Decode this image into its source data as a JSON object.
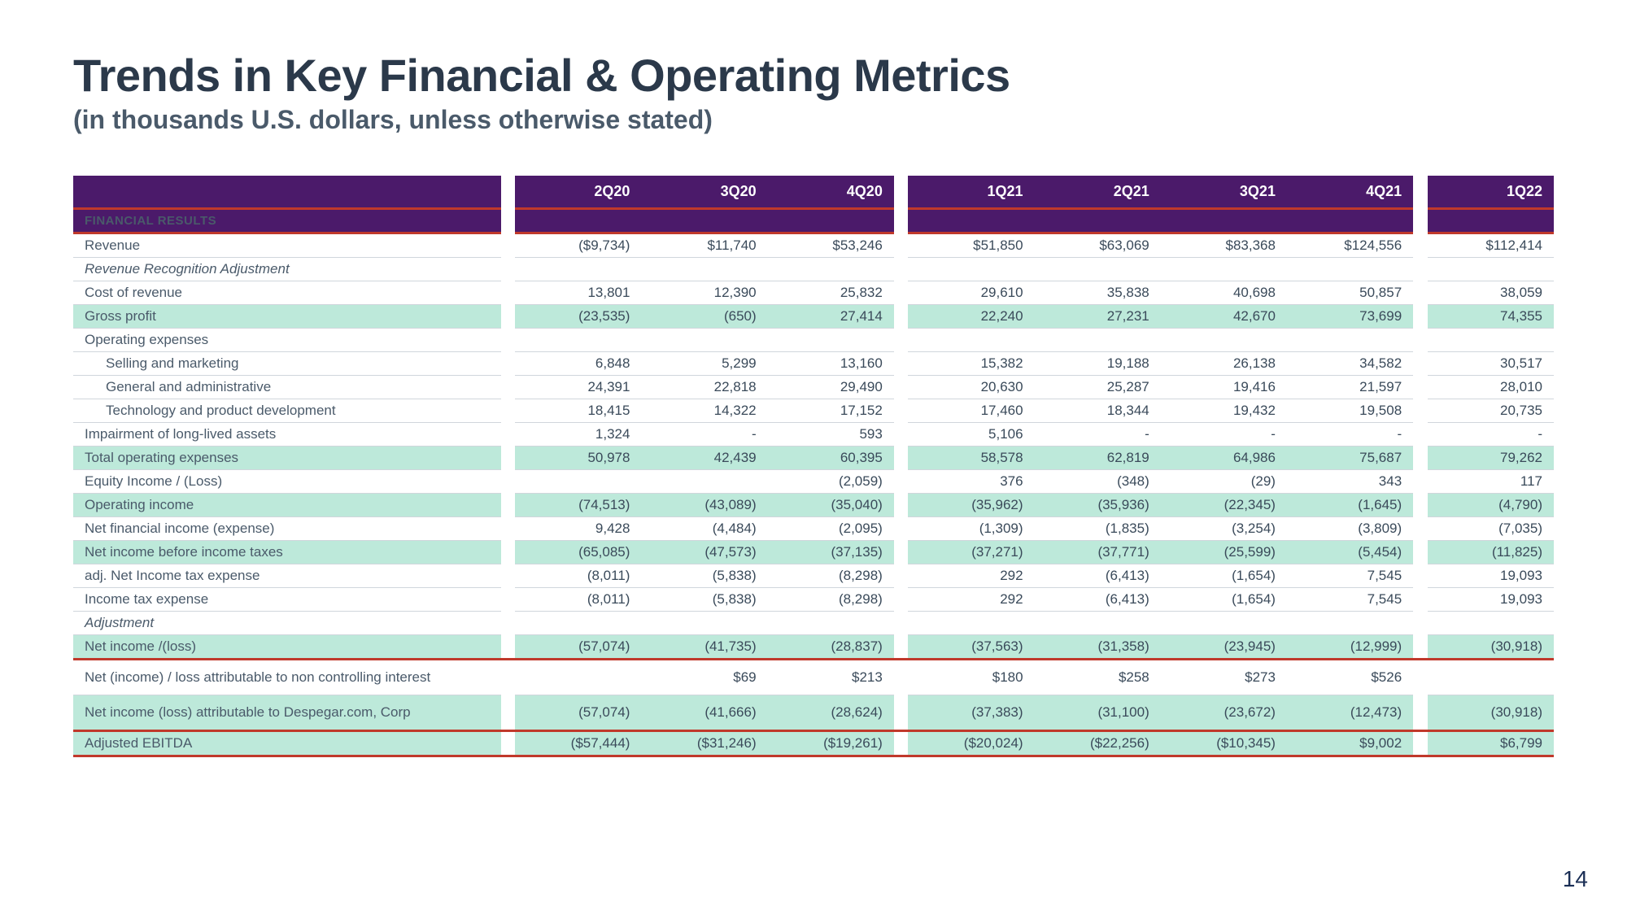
{
  "title": "Trends in Key Financial & Operating Metrics",
  "subtitle": "(in thousands U.S. dollars, unless otherwise stated)",
  "page_number": "14",
  "colors": {
    "header_bg": "#4b1a6a",
    "header_text": "#ffffff",
    "accent_line": "#c0392b",
    "highlight_bg": "#bde9da",
    "body_text": "#3a4a5a",
    "title_text": "#2b394a",
    "row_border": "#d0d6dc"
  },
  "columns": [
    "2Q20",
    "3Q20",
    "4Q20",
    "1Q21",
    "2Q21",
    "3Q21",
    "4Q21",
    "1Q22"
  ],
  "column_groups": [
    [
      0,
      1,
      2
    ],
    [
      3,
      4,
      5,
      6
    ],
    [
      7
    ]
  ],
  "section_header": "FINANCIAL RESULTS",
  "rows": [
    {
      "label": "Revenue",
      "values": [
        "($9,734)",
        "$11,740",
        "$53,246",
        "$51,850",
        "$63,069",
        "$83,368",
        "$124,556",
        "$112,414"
      ]
    },
    {
      "label": "Revenue Recognition Adjustment",
      "italic": true,
      "values": [
        "",
        "",
        "",
        "",
        "",
        "",
        "",
        ""
      ]
    },
    {
      "label": "Cost of revenue",
      "values": [
        "13,801",
        "12,390",
        "25,832",
        "29,610",
        "35,838",
        "40,698",
        "50,857",
        "38,059"
      ]
    },
    {
      "label": "Gross profit",
      "hl": true,
      "values": [
        "(23,535)",
        "(650)",
        "27,414",
        "22,240",
        "27,231",
        "42,670",
        "73,699",
        "74,355"
      ]
    },
    {
      "label": "Operating expenses",
      "values": [
        "",
        "",
        "",
        "",
        "",
        "",
        "",
        ""
      ]
    },
    {
      "label": "Selling and marketing",
      "indent": true,
      "values": [
        "6,848",
        "5,299",
        "13,160",
        "15,382",
        "19,188",
        "26,138",
        "34,582",
        "30,517"
      ]
    },
    {
      "label": "General and administrative",
      "indent": true,
      "values": [
        "24,391",
        "22,818",
        "29,490",
        "20,630",
        "25,287",
        "19,416",
        "21,597",
        "28,010"
      ]
    },
    {
      "label": "Technology and product development",
      "indent": true,
      "values": [
        "18,415",
        "14,322",
        "17,152",
        "17,460",
        "18,344",
        "19,432",
        "19,508",
        "20,735"
      ]
    },
    {
      "label": "Impairment of long-lived assets",
      "values": [
        "1,324",
        "-",
        "593",
        "5,106",
        "-",
        "-",
        "-",
        "-"
      ]
    },
    {
      "label": "Total operating expenses",
      "hl": true,
      "values": [
        "50,978",
        "42,439",
        "60,395",
        "58,578",
        "62,819",
        "64,986",
        "75,687",
        "79,262"
      ]
    },
    {
      "label": "Equity Income / (Loss)",
      "values": [
        "",
        "",
        "(2,059)",
        "376",
        "(348)",
        "(29)",
        "343",
        "117"
      ]
    },
    {
      "label": "Operating income",
      "hl": true,
      "values": [
        "(74,513)",
        "(43,089)",
        "(35,040)",
        "(35,962)",
        "(35,936)",
        "(22,345)",
        "(1,645)",
        "(4,790)"
      ]
    },
    {
      "label": "Net financial income (expense)",
      "values": [
        "9,428",
        "(4,484)",
        "(2,095)",
        "(1,309)",
        "(1,835)",
        "(3,254)",
        "(3,809)",
        "(7,035)"
      ]
    },
    {
      "label": "Net income before income taxes",
      "hl": true,
      "values": [
        "(65,085)",
        "(47,573)",
        "(37,135)",
        "(37,271)",
        "(37,771)",
        "(25,599)",
        "(5,454)",
        "(11,825)"
      ]
    },
    {
      "label": "adj. Net Income tax expense",
      "values": [
        "(8,011)",
        "(5,838)",
        "(8,298)",
        "292",
        "(6,413)",
        "(1,654)",
        "7,545",
        "19,093"
      ]
    },
    {
      "label": "Income tax expense",
      "values": [
        "(8,011)",
        "(5,838)",
        "(8,298)",
        "292",
        "(6,413)",
        "(1,654)",
        "7,545",
        "19,093"
      ]
    },
    {
      "label": "Adjustment",
      "italic": true,
      "values": [
        "",
        "",
        "",
        "",
        "",
        "",
        "",
        ""
      ]
    },
    {
      "label": "Net income /(loss)",
      "hl": true,
      "redline": true,
      "values": [
        "(57,074)",
        "(41,735)",
        "(28,837)",
        "(37,563)",
        "(31,358)",
        "(23,945)",
        "(12,999)",
        "(30,918)"
      ]
    },
    {
      "label": "Net (income) / loss attributable to non controlling interest",
      "tall": true,
      "values": [
        "",
        "$69",
        "$213",
        "$180",
        "$258",
        "$273",
        "$526",
        ""
      ]
    },
    {
      "label": "Net income (loss) attributable to Despegar.com, Corp",
      "hl": true,
      "redline": true,
      "tall": true,
      "values": [
        "(57,074)",
        "(41,666)",
        "(28,624)",
        "(37,383)",
        "(31,100)",
        "(23,672)",
        "(12,473)",
        "(30,918)"
      ]
    },
    {
      "label": "Adjusted EBITDA",
      "hl": true,
      "redline": true,
      "values": [
        "($57,444)",
        "($31,246)",
        "($19,261)",
        "($20,024)",
        "($22,256)",
        "($10,345)",
        "$9,002",
        "$6,799"
      ]
    }
  ]
}
